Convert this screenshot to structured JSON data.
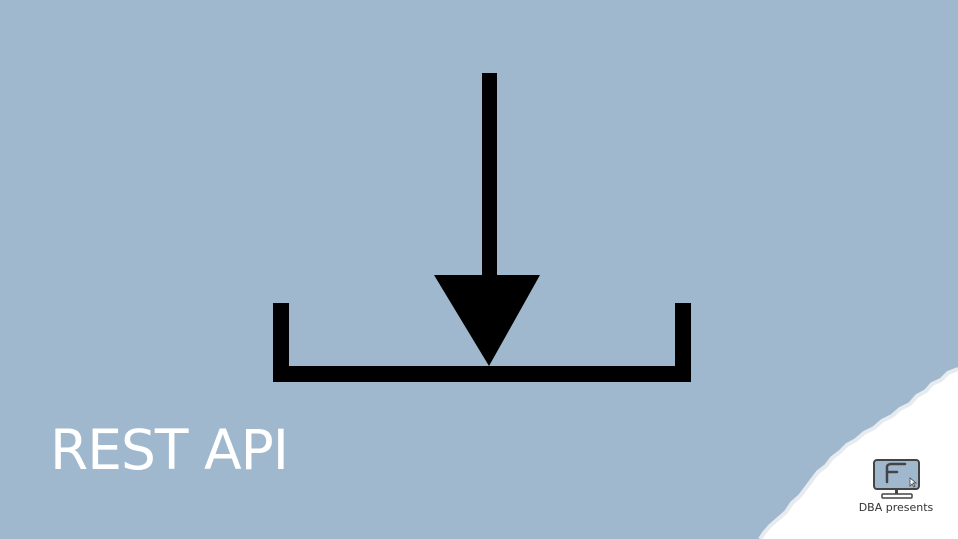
{
  "slide": {
    "title": "REST API",
    "brand_label": "DBA presents"
  },
  "icons": {
    "main_graphic": "download-tray-icon",
    "brand_logo": "monitor-logo-icon"
  },
  "colors": {
    "background": "#a0b8ce",
    "graphic": "#000000",
    "title_text": "#ffffff",
    "corner_paper": "#ffffff",
    "brand_text": "#333333",
    "logo_screen": "#a0b8ce",
    "logo_outline": "#444444"
  }
}
